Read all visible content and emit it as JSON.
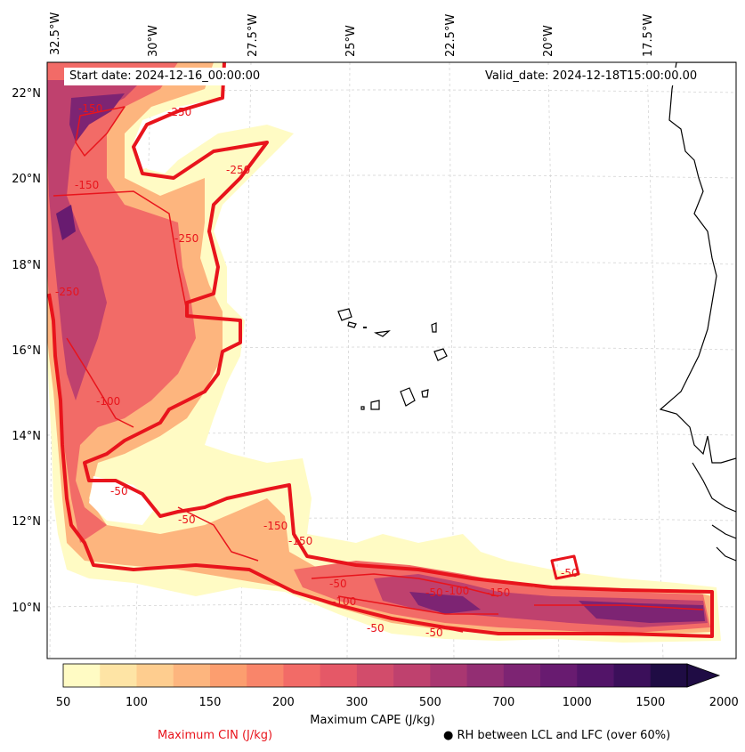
{
  "map": {
    "start_date": "Start date: 2024-12-16_00:00:00",
    "valid_date": "Valid_date: 2024-12-18T15:00:00.00",
    "lon_labels": [
      "32.5°W",
      "30°W",
      "27.5°W",
      "25°W",
      "22.5°W",
      "20°W",
      "17.5°W"
    ],
    "lat_labels": [
      "22°N",
      "20°N",
      "18°N",
      "16°N",
      "14°N",
      "12°N",
      "10°N"
    ],
    "contour_labels": [
      "-150",
      "-250",
      "-150",
      "-250",
      "-250",
      "-250",
      "-100",
      "-50",
      "-150",
      "-50",
      "-150",
      "-50",
      "-100",
      "-50",
      "-50",
      "-100",
      "-50",
      "-150",
      "-50"
    ]
  },
  "colorbar": {
    "ticks": [
      "50",
      "100",
      "150",
      "200",
      "300",
      "500",
      "700",
      "1000",
      "1500",
      "2000"
    ],
    "colors": [
      "#fffbc4",
      "#fee4a5",
      "#fecd8f",
      "#fdb57e",
      "#fc9e6f",
      "#f9856a",
      "#f26b67",
      "#e55867",
      "#d24c6b",
      "#bf416e",
      "#a93771",
      "#932e73",
      "#7d2473",
      "#681b70",
      "#521468",
      "#3b0f5a",
      "#1f0c44"
    ],
    "title": "Maximum CAPE (J/kg)",
    "extend_color": "#1f0c44"
  },
  "legend": {
    "cin_label": "Maximum CIN (J/kg)",
    "cin_color": "#e8141c",
    "rh_label": "● RH between LCL and LFC (over 60%)"
  }
}
